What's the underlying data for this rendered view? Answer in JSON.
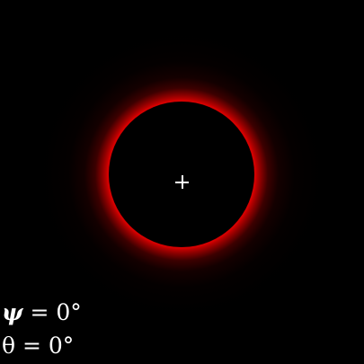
{
  "readouts": {
    "psi": {
      "symbol": "ψ",
      "equals": " = ",
      "value": "0°"
    },
    "theta": {
      "symbol": "θ",
      "equals": " = ",
      "value": "0°"
    }
  },
  "colors": {
    "background": "#000000",
    "ring": "#d40000",
    "text": "#ffffff"
  },
  "icons": {
    "center_marker": "crosshair-plus-icon"
  }
}
